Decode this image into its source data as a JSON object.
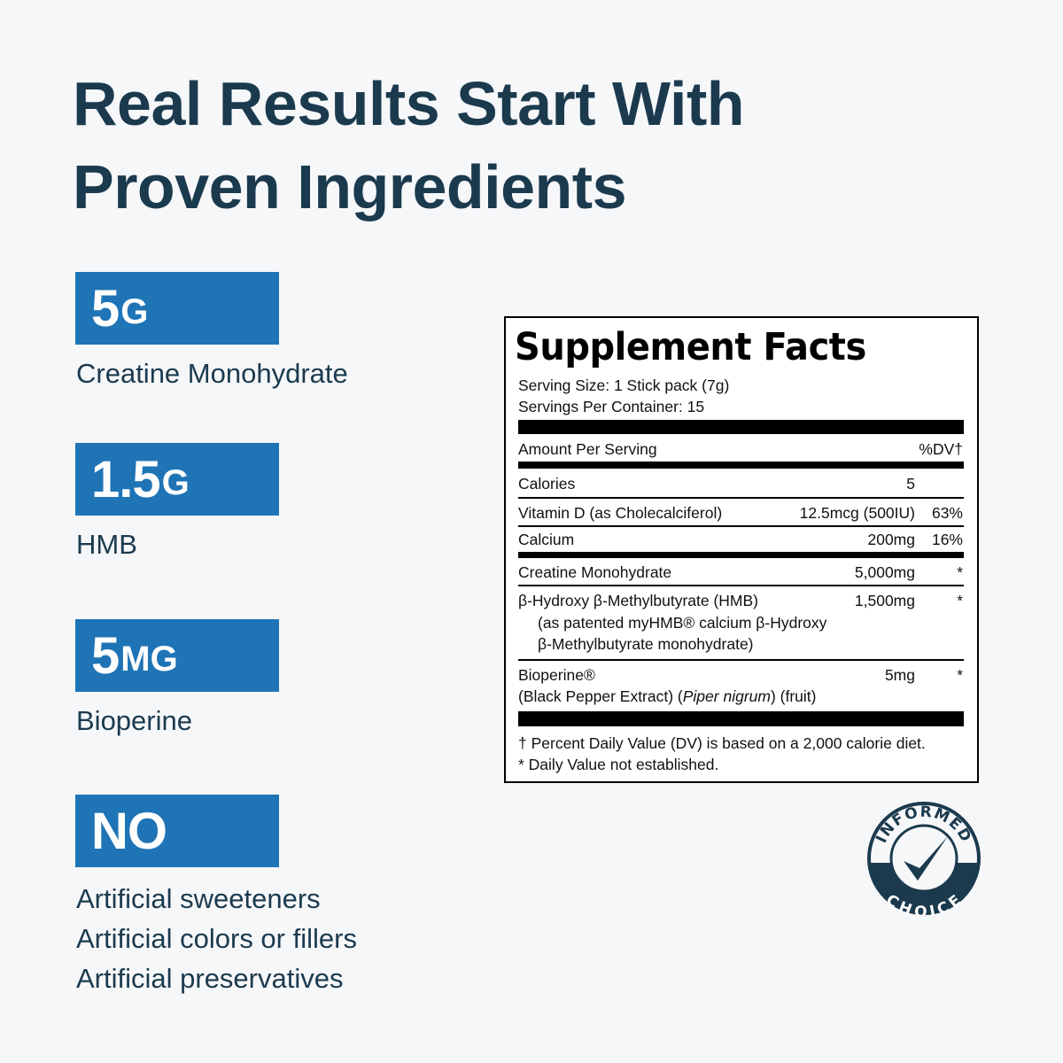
{
  "headline": {
    "line1": "Real Results Start With",
    "line2": "Proven Ingredients"
  },
  "highlights": [
    {
      "amount": "5",
      "unit": "G",
      "label": "Creatine Monohydrate"
    },
    {
      "amount": "1.5",
      "unit": "G",
      "label": "HMB"
    },
    {
      "amount": "5",
      "unit": "MG",
      "label": "Bioperine"
    },
    {
      "amount": "NO",
      "unit": "",
      "labels": [
        "Artificial sweeteners",
        "Artificial colors or fillers",
        "Artificial preservatives"
      ]
    }
  ],
  "supplement_facts": {
    "title": "Supplement Facts",
    "serving_size": "Serving Size: 1 Stick pack (7g)",
    "servings_per_container": "Servings Per Container: 15",
    "amount_header": "Amount Per Serving",
    "dv_header": "%DV†",
    "rows": [
      {
        "name": "Calories",
        "amount": "5",
        "dv": ""
      },
      {
        "name": "Vitamin D (as Cholecalciferol)",
        "amount": "12.5mcg (500IU)",
        "dv": "63%"
      },
      {
        "name": "Calcium",
        "amount": "200mg",
        "dv": "16%"
      },
      {
        "name": "Creatine Monohydrate",
        "amount": "5,000mg",
        "dv": "*"
      },
      {
        "name": "β-Hydroxy β-Methylbutyrate (HMB)",
        "sub1": "(as patented myHMB® calcium β-Hydroxy",
        "sub2": "β-Methylbutyrate monohydrate)",
        "amount": "1,500mg",
        "dv": "*"
      },
      {
        "name": "Bioperine®",
        "sub_pre": "(Black Pepper Extract) (",
        "sub_italic": "Piper nigrum",
        "sub_post": ") (fruit)",
        "amount": "5mg",
        "dv": "*"
      }
    ],
    "footnote1": "† Percent Daily Value (DV) is based on a 2,000 calorie diet.",
    "footnote2": "* Daily Value not established."
  },
  "certification": {
    "top_text": "INFORMED",
    "bottom_text": "CHOICE",
    "color": "#1b3a4e"
  },
  "colors": {
    "accent": "#1f74b6",
    "text": "#1b3a4e",
    "background": "#f6f7f9"
  }
}
